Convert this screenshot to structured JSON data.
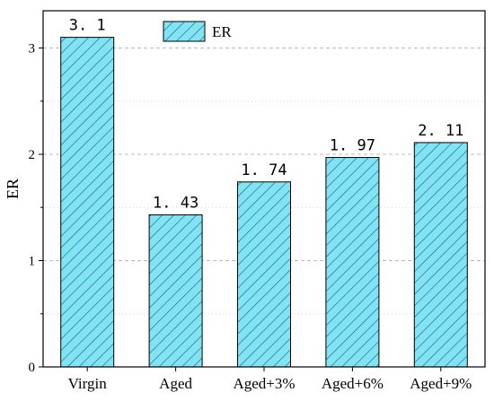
{
  "chart_data": {
    "type": "bar",
    "categories": [
      "Virgin",
      "Aged",
      "Aged+3%",
      "Aged+6%",
      "Aged+9%"
    ],
    "series": [
      {
        "name": "ER",
        "values": [
          3.1,
          1.43,
          1.74,
          1.97,
          2.11
        ],
        "labels": [
          "3. 1",
          "1. 43",
          "1. 74",
          "1. 97",
          "2. 11"
        ]
      }
    ],
    "ylabel": "ER",
    "xlabel": "",
    "ylim": [
      0,
      3.35
    ],
    "yticks": [
      0,
      1,
      2,
      3
    ],
    "grid": "horizontal dashed",
    "legend_position": "top-center",
    "colors": {
      "bar_fill": "#7fe6f0",
      "hatch": "#3b3fb8",
      "bar_edge": "#000000",
      "grid": "#bbbbbb"
    }
  }
}
